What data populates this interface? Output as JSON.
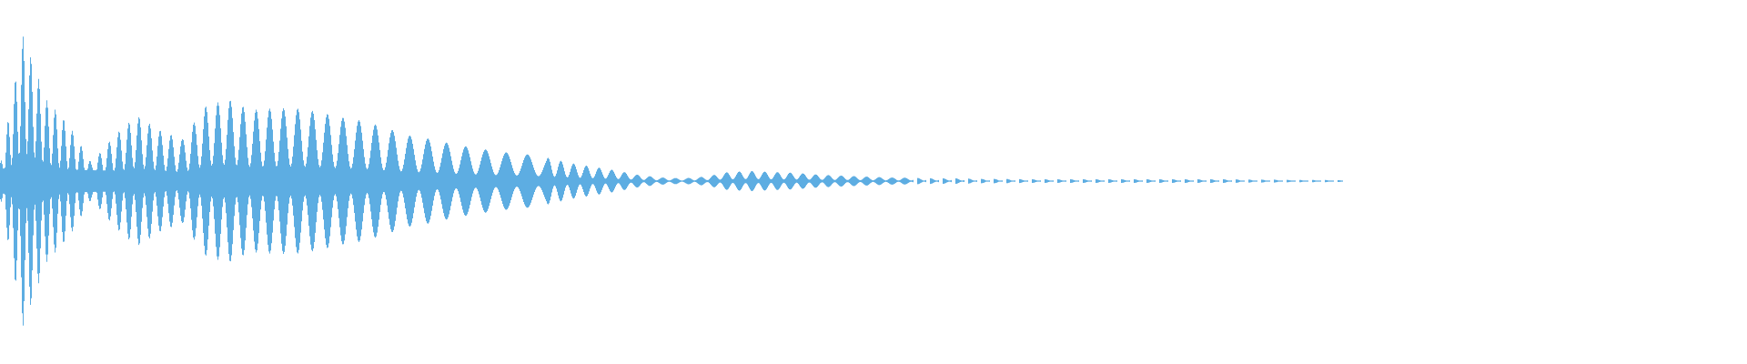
{
  "chart_data": {
    "type": "waveform",
    "title": "",
    "xlabel": "",
    "ylabel": "",
    "ylim": [
      -1,
      1
    ],
    "axes_visible": false,
    "grid": false,
    "color": "#5dade2",
    "background": "#ffffff",
    "envelope_peak_amplitude": [
      0.1,
      0.8,
      0.45,
      0.31,
      0.1,
      0.25,
      0.36,
      0.28,
      0.23,
      0.41,
      0.45,
      0.39,
      0.4,
      0.4,
      0.38,
      0.35,
      0.33,
      0.29,
      0.25,
      0.23,
      0.2,
      0.18,
      0.16,
      0.15,
      0.13,
      0.1,
      0.08,
      0.06,
      0.035,
      0.02,
      0.015,
      0.025,
      0.05,
      0.055,
      0.05,
      0.045,
      0.035,
      0.03,
      0.025,
      0.02,
      0.018,
      0.015,
      0.015,
      0.012,
      0.012,
      0.01,
      0.01,
      0.01,
      0.01,
      0.01,
      0.01,
      0.01,
      0.01,
      0.01,
      0.01,
      0.008,
      0.008,
      0.006,
      0.006,
      0.005
    ]
  }
}
